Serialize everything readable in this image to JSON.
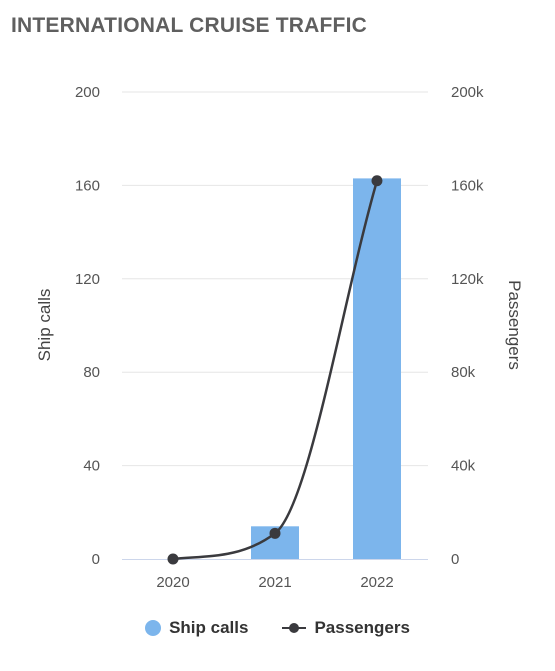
{
  "title": "INTERNATIONAL CRUISE TRAFFIC",
  "colors": {
    "bar": "#7cb5ec",
    "line": "#3a3a3e",
    "grid": "#e6e6e6",
    "baseline": "#ccd6eb"
  },
  "chart_data": {
    "type": "bar",
    "categories": [
      "2020",
      "2021",
      "2022"
    ],
    "series": [
      {
        "name": "Ship calls",
        "type": "bar",
        "axis": "left",
        "values": [
          0,
          14,
          163
        ]
      },
      {
        "name": "Passengers",
        "type": "line",
        "axis": "right",
        "values": [
          0,
          11000,
          162000
        ]
      }
    ],
    "ylabel": "Ship calls",
    "ylabel_right": "Passengers",
    "ylim": [
      0,
      200
    ],
    "ylim_right": [
      0,
      200000
    ],
    "yticks": [
      "0",
      "40",
      "80",
      "120",
      "160",
      "200"
    ],
    "yticks_right": [
      "0",
      "40k",
      "80k",
      "120k",
      "160k",
      "200k"
    ],
    "grid": true,
    "legend_position": "bottom"
  }
}
